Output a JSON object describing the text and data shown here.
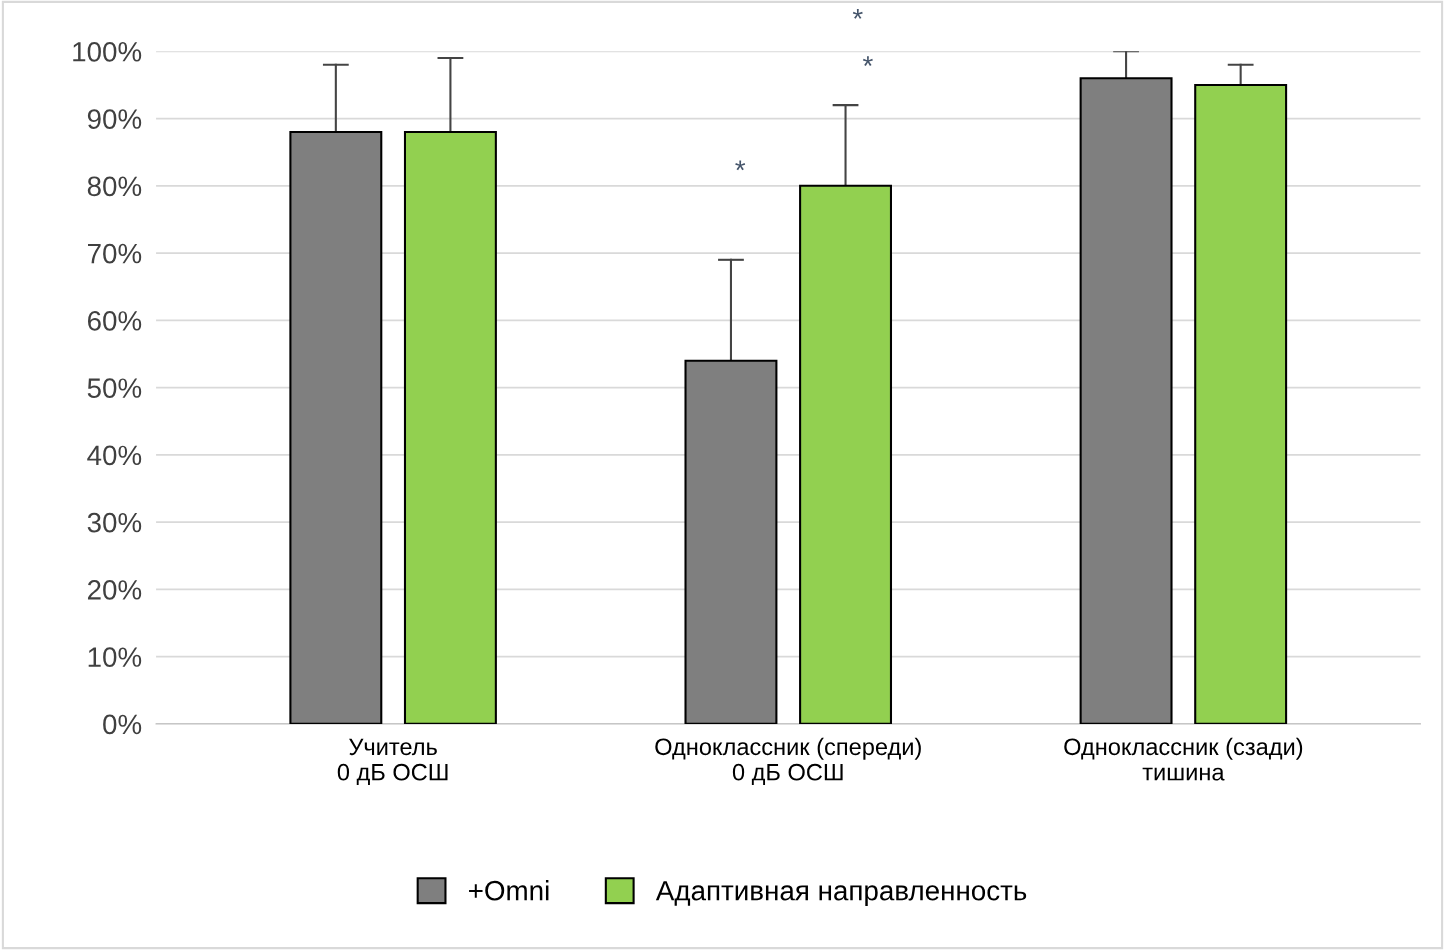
{
  "chart_data": {
    "type": "bar",
    "categories": [
      "Учитель\n0 дБ ОСШ",
      "Одноклассник (спереди)\n0 дБ ОСШ",
      "Одноклассник (сзади)\nтишина"
    ],
    "series": [
      {
        "name": "+Omni",
        "color": "#7f7f7f",
        "values": [
          88,
          54,
          96
        ],
        "errors": [
          [
            88,
            98
          ],
          [
            54,
            69
          ],
          [
            96,
            100
          ]
        ]
      },
      {
        "name": "Адаптивная направленность",
        "color": "#92d050",
        "values": [
          88,
          80,
          95
        ],
        "errors": [
          [
            88,
            99
          ],
          [
            80,
            92
          ],
          [
            95,
            98
          ]
        ]
      }
    ],
    "ylim": [
      0,
      100
    ],
    "yticks": [
      {
        "value": 0,
        "label": "0%"
      },
      {
        "value": 10,
        "label": "10%"
      },
      {
        "value": 20,
        "label": "20%"
      },
      {
        "value": 30,
        "label": "30%"
      },
      {
        "value": 40,
        "label": "40%"
      },
      {
        "value": 50,
        "label": "50%"
      },
      {
        "value": 60,
        "label": "60%"
      },
      {
        "value": 70,
        "label": "70%"
      },
      {
        "value": 80,
        "label": "80%"
      },
      {
        "value": 90,
        "label": "90%"
      },
      {
        "value": 100,
        "label": "100%"
      }
    ],
    "grid": "y",
    "legend": "bottom",
    "annotations": [
      "*",
      "*",
      "*"
    ]
  }
}
